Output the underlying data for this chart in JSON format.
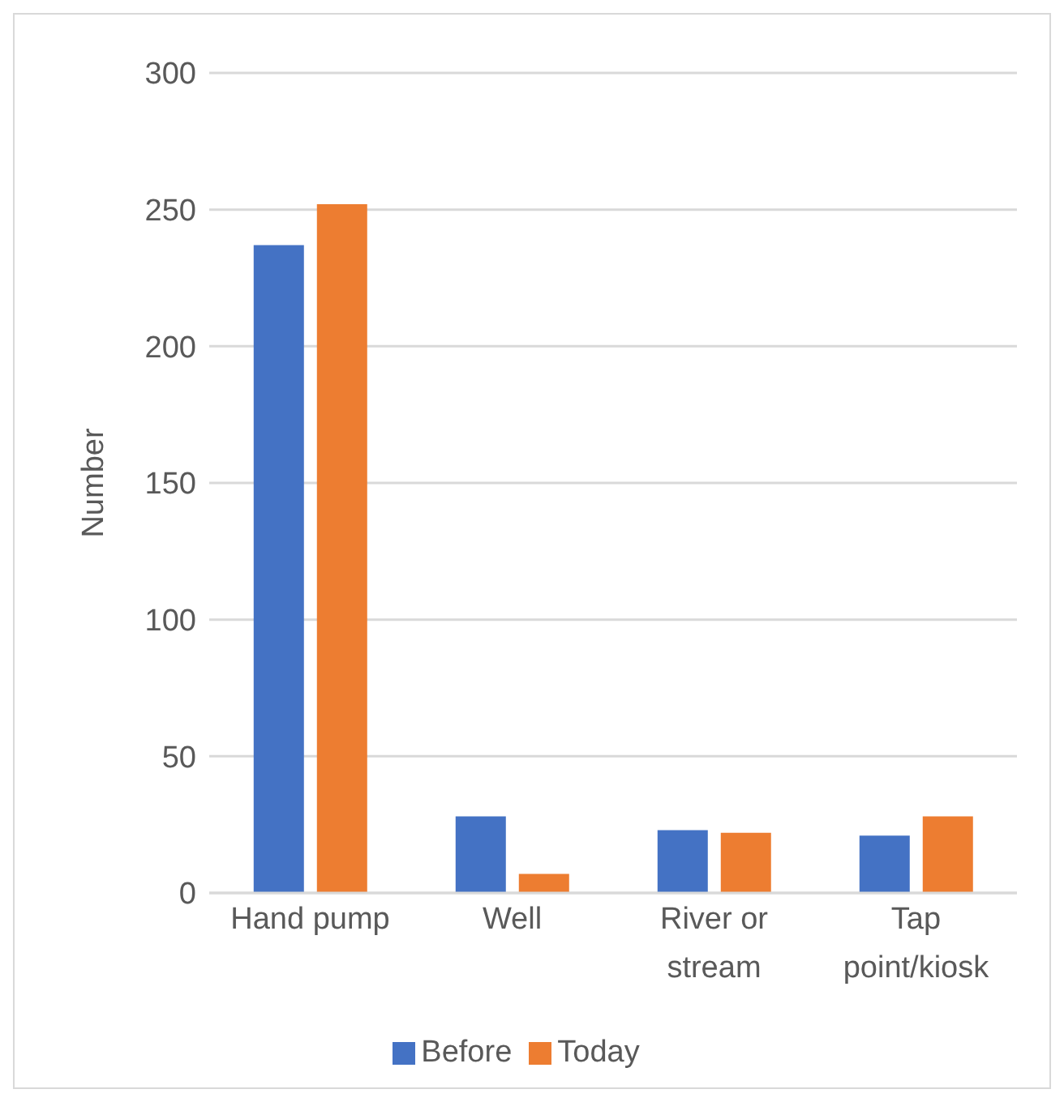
{
  "chart_data": {
    "type": "bar",
    "ylabel": "Number",
    "categories": [
      "Hand pump",
      "Well",
      "River or stream",
      "Tap point/kiosk"
    ],
    "series": [
      {
        "name": "Before",
        "color": "#4472c4",
        "values": [
          237,
          28,
          23,
          21
        ]
      },
      {
        "name": "Today",
        "color": "#ed7d31",
        "values": [
          252,
          7,
          22,
          28
        ]
      }
    ],
    "ylim": [
      0,
      300
    ],
    "yticks": [
      0,
      50,
      100,
      150,
      200,
      250,
      300
    ],
    "grid": "y",
    "legend": "bottom"
  }
}
